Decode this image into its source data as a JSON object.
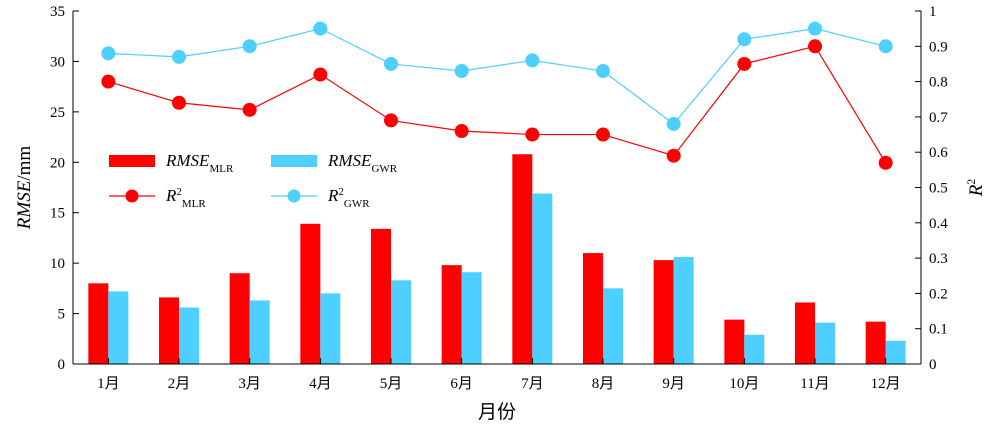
{
  "chart_data": {
    "type": "bar+line",
    "categories": [
      "1月",
      "2月",
      "3月",
      "4月",
      "5月",
      "6月",
      "7月",
      "8月",
      "9月",
      "10月",
      "11月",
      "12月"
    ],
    "xlabel": "月份",
    "ylabel_left": {
      "main": "RMSE",
      "suffix": "/mm"
    },
    "ylabel_right": {
      "main": "R",
      "sup": "2"
    },
    "ylim_left": [
      0,
      35
    ],
    "yticks_left": [
      0,
      5,
      10,
      15,
      20,
      25,
      30,
      35
    ],
    "ylim_right": [
      0,
      1
    ],
    "yticks_right": [
      0,
      0.1,
      0.2,
      0.3,
      0.4,
      0.5,
      0.6,
      0.7,
      0.8,
      0.9,
      1
    ],
    "grid": false,
    "legend_position": "middle-left",
    "bars": [
      {
        "name": "RMSE",
        "sub": "MLR",
        "color": "#ff0000",
        "values": [
          8.0,
          6.6,
          9.0,
          13.9,
          13.4,
          9.8,
          20.8,
          11.0,
          10.3,
          4.4,
          6.1,
          4.2
        ]
      },
      {
        "name": "RMSE",
        "sub": "GWR",
        "color": "#4dcfff",
        "values": [
          7.2,
          5.6,
          6.3,
          7.0,
          8.3,
          9.1,
          16.9,
          7.5,
          10.6,
          2.9,
          4.1,
          2.3
        ]
      }
    ],
    "lines": [
      {
        "name": "R",
        "sup": "2",
        "sub": "MLR",
        "color": "#ff0000",
        "values": [
          0.8,
          0.74,
          0.72,
          0.82,
          0.69,
          0.66,
          0.65,
          0.65,
          0.59,
          0.85,
          0.9,
          0.57
        ]
      },
      {
        "name": "R",
        "sup": "2",
        "sub": "GWR",
        "color": "#4dcfff",
        "values": [
          0.88,
          0.87,
          0.9,
          0.95,
          0.85,
          0.83,
          0.86,
          0.83,
          0.68,
          0.92,
          0.95,
          0.9
        ]
      }
    ]
  }
}
